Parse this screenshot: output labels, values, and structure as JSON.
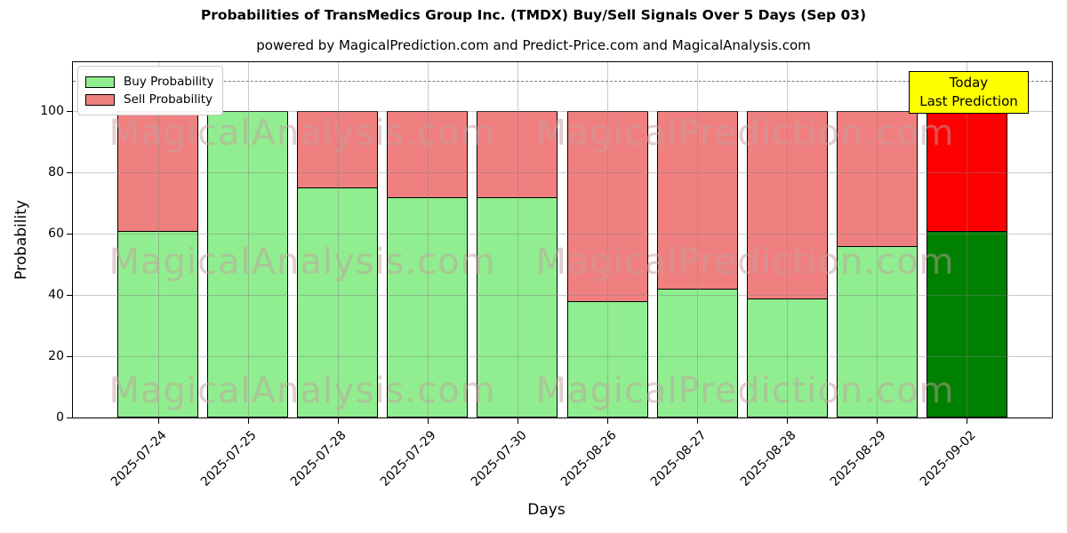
{
  "title": "Probabilities of TransMedics Group Inc. (TMDX) Buy/Sell Signals Over 5 Days (Sep 03)",
  "subtitle": "powered by MagicalPrediction.com and Predict-Price.com and MagicalAnalysis.com",
  "axes": {
    "xlabel": "Days",
    "ylabel": "Probability",
    "yticks": [
      0,
      20,
      40,
      60,
      80,
      100
    ]
  },
  "legend": {
    "entries": [
      "Buy Probability",
      "Sell Probability"
    ]
  },
  "annotation": {
    "line1": "Today",
    "line2": "Last Prediction",
    "bg_color": "#ffff00"
  },
  "watermarks": {
    "left_text": "MagicalAnalysis.com",
    "right_text": "MagicalPrediction.com"
  },
  "chart_data": {
    "type": "bar",
    "stacked": true,
    "title": "Probabilities of TransMedics Group Inc. (TMDX) Buy/Sell Signals Over 5 Days (Sep 03)",
    "xlabel": "Days",
    "ylabel": "Probability",
    "categories": [
      "2025-07-24",
      "2025-07-25",
      "2025-07-28",
      "2025-07-29",
      "2025-07-30",
      "2025-08-26",
      "2025-08-27",
      "2025-08-28",
      "2025-08-29",
      "2025-09-02"
    ],
    "series": [
      {
        "name": "Buy Probability",
        "color": "#90ee90",
        "final_bar_color": "#008000",
        "values": [
          61,
          100,
          75,
          72,
          72,
          38,
          42,
          39,
          56,
          61
        ]
      },
      {
        "name": "Sell Probability",
        "color": "#f08080",
        "final_bar_color": "#ff0000",
        "values": [
          39,
          0,
          25,
          28,
          28,
          62,
          58,
          61,
          44,
          39
        ]
      }
    ],
    "ylim": [
      0,
      116
    ],
    "yticks": [
      0,
      20,
      40,
      60,
      80,
      100
    ],
    "dashed_guideline_y": 110,
    "grid": true,
    "legend_position": "upper-left"
  }
}
